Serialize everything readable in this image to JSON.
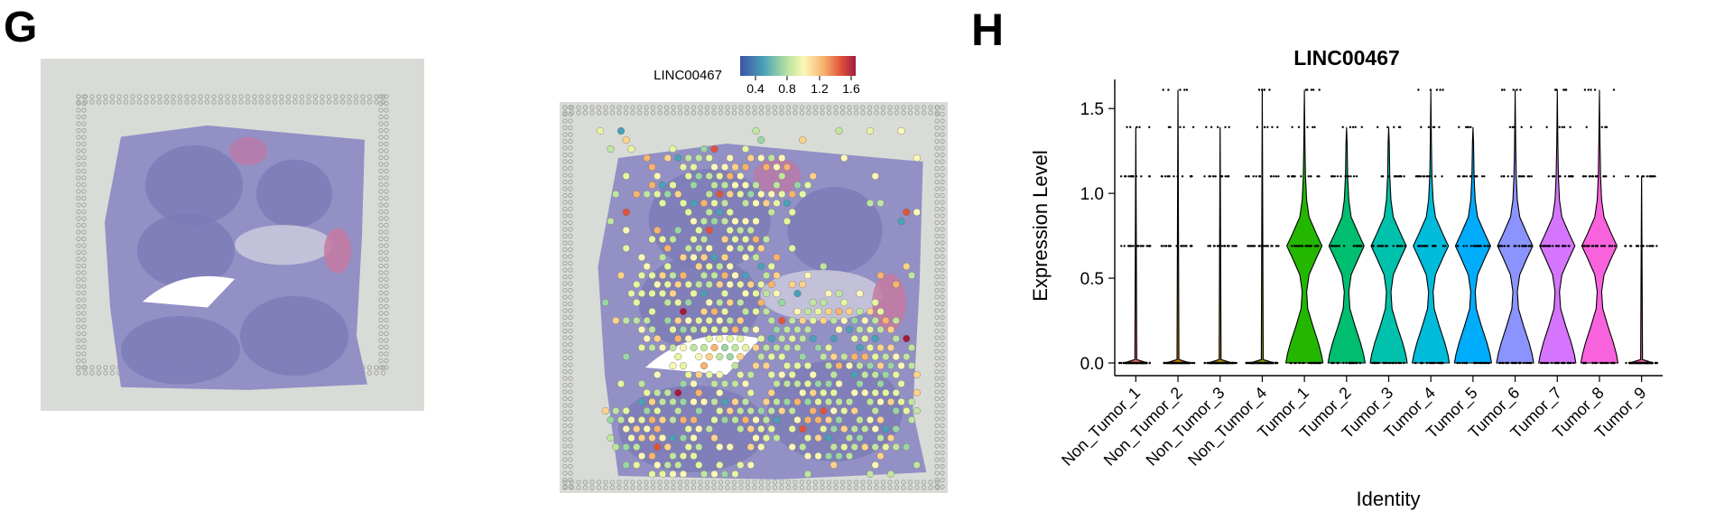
{
  "panel_g": {
    "letter": "G",
    "colorbar": {
      "label": "LINC00467",
      "ticks": [
        "0.4",
        "0.8",
        "1.2",
        "1.6"
      ]
    },
    "colors": {
      "slide_background": "#d9dbd7",
      "tissue": "#8e8cc4",
      "fiducial": "#9a9c9a",
      "spot_low": "#3d52a2",
      "spot_mid": "#fbf7b6",
      "spot_high": "#a11b3e"
    }
  },
  "panel_h": {
    "letter": "H",
    "title": "LINC00467"
  },
  "chart_data": {
    "type": "violin",
    "title": "LINC00467",
    "xlabel": "Identity",
    "ylabel": "Expression Level",
    "ylim": [
      0,
      1.65
    ],
    "yticks": [
      "0.0",
      "0.5",
      "1.0",
      "1.5"
    ],
    "categories": [
      "Non_Tumor_1",
      "Non_Tumor_2",
      "Non_Tumor_3",
      "Non_Tumor_4",
      "Tumor_1",
      "Tumor_2",
      "Tumor_3",
      "Tumor_4",
      "Tumor_5",
      "Tumor_6",
      "Tumor_7",
      "Tumor_8",
      "Tumor_9"
    ],
    "colors": [
      "#f8766d",
      "#e18a00",
      "#be9c00",
      "#8cab00",
      "#24b700",
      "#00be70",
      "#00c1ab",
      "#00bbda",
      "#00acfc",
      "#8b93ff",
      "#d575fe",
      "#f962dd",
      "#ff65ac"
    ],
    "violin_max": [
      1.39,
      1.61,
      1.39,
      1.61,
      1.61,
      1.39,
      1.39,
      1.61,
      1.39,
      1.61,
      1.61,
      1.61,
      1.1
    ],
    "point_levels": [
      [
        0,
        0.69,
        1.1,
        1.39
      ],
      [
        0,
        0.69,
        1.1,
        1.39,
        1.61
      ],
      [
        0,
        0.69,
        1.1,
        1.39
      ],
      [
        0,
        0.69,
        1.1,
        1.39,
        1.61
      ],
      [
        0,
        0.69,
        1.1,
        1.39,
        1.61
      ],
      [
        0,
        0.69,
        1.1,
        1.39
      ],
      [
        0,
        0.69,
        1.1,
        1.39
      ],
      [
        0,
        0.69,
        1.1,
        1.39,
        1.61
      ],
      [
        0,
        0.69,
        1.1,
        1.39
      ],
      [
        0,
        0.69,
        1.1,
        1.39,
        1.61
      ],
      [
        0,
        0.69,
        1.1,
        1.39,
        1.61
      ],
      [
        0,
        0.69,
        1.1,
        1.39,
        1.61
      ],
      [
        0,
        0.69,
        1.1
      ]
    ],
    "grid": false,
    "legend": "none"
  }
}
